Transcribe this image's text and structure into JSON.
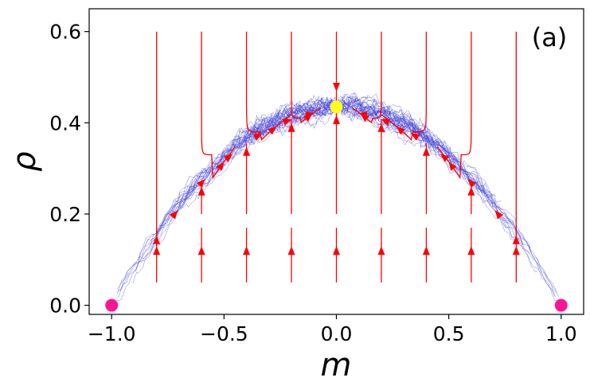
{
  "chart_data": {
    "type": "line",
    "panel_label": "(a)",
    "xlabel": "m",
    "ylabel": "ρ",
    "xlim": [
      -1.1,
      1.1
    ],
    "ylim": [
      -0.02,
      0.65
    ],
    "xticks": [
      {
        "value": -1.0,
        "label": "−1.0"
      },
      {
        "value": -0.5,
        "label": "−0.5"
      },
      {
        "value": 0.0,
        "label": "0.0"
      },
      {
        "value": 0.5,
        "label": "0.5"
      },
      {
        "value": 1.0,
        "label": "1.0"
      }
    ],
    "yticks": [
      {
        "value": 0.0,
        "label": "0.0"
      },
      {
        "value": 0.2,
        "label": "0.2"
      },
      {
        "value": 0.4,
        "label": "0.4"
      },
      {
        "value": 0.6,
        "label": "0.6"
      }
    ],
    "grid": false,
    "colors": {
      "trajectories": "#3b3bd6",
      "flow": "#ff0000",
      "stable_point": "#ffff1a",
      "absorbing_point": "#ff1493"
    },
    "fixed_points": [
      {
        "name": "interior-stable",
        "m": 0.0,
        "rho": 0.435,
        "color": "#ffff1a"
      },
      {
        "name": "absorbing-left",
        "m": -1.0,
        "rho": 0.0,
        "color": "#ff1493"
      },
      {
        "name": "absorbing-right",
        "m": 1.0,
        "rho": 0.0,
        "color": "#ff1493"
      }
    ],
    "slow_manifold": {
      "description": "rho ≈ 0.435 (1 − m²)",
      "rho_at_m0": 0.435
    },
    "flow_lines_from_top": [
      {
        "m0": -0.8,
        "rho0": 0.6,
        "m_end": -0.8,
        "rho_end": 0.2
      },
      {
        "m0": -0.6,
        "rho0": 0.6,
        "m_end": -0.45,
        "rho_end": 0.35
      },
      {
        "m0": -0.4,
        "rho0": 0.6,
        "m_end": -0.2,
        "rho_end": 0.4
      },
      {
        "m0": -0.2,
        "rho0": 0.6,
        "m_end": -0.07,
        "rho_end": 0.43
      },
      {
        "m0": 0.0,
        "rho0": 0.6,
        "m_end": 0.0,
        "rho_end": 0.435
      },
      {
        "m0": 0.2,
        "rho0": 0.6,
        "m_end": 0.07,
        "rho_end": 0.43
      },
      {
        "m0": 0.4,
        "rho0": 0.6,
        "m_end": 0.2,
        "rho_end": 0.4
      },
      {
        "m0": 0.6,
        "rho0": 0.6,
        "m_end": 0.45,
        "rho_end": 0.35
      },
      {
        "m0": 0.8,
        "rho0": 0.6,
        "m_end": 0.8,
        "rho_end": 0.2
      }
    ],
    "flow_lines_from_bottom": [
      {
        "m0": -0.8,
        "rho0": 0.05
      },
      {
        "m0": -0.6,
        "rho0": 0.05
      },
      {
        "m0": -0.4,
        "rho0": 0.05
      },
      {
        "m0": -0.2,
        "rho0": 0.05
      },
      {
        "m0": 0.0,
        "rho0": 0.05
      },
      {
        "m0": 0.2,
        "rho0": 0.05
      },
      {
        "m0": 0.4,
        "rho0": 0.05
      },
      {
        "m0": 0.6,
        "rho0": 0.05
      },
      {
        "m0": 0.8,
        "rho0": 0.05
      }
    ],
    "flow_lines_from_middle": [
      {
        "m0": -0.6,
        "rho0": 0.2
      },
      {
        "m0": -0.4,
        "rho0": 0.2
      },
      {
        "m0": -0.2,
        "rho0": 0.2
      },
      {
        "m0": 0.0,
        "rho0": 0.2
      },
      {
        "m0": 0.2,
        "rho0": 0.2
      },
      {
        "m0": 0.4,
        "rho0": 0.2
      },
      {
        "m0": 0.6,
        "rho0": 0.2
      }
    ]
  }
}
